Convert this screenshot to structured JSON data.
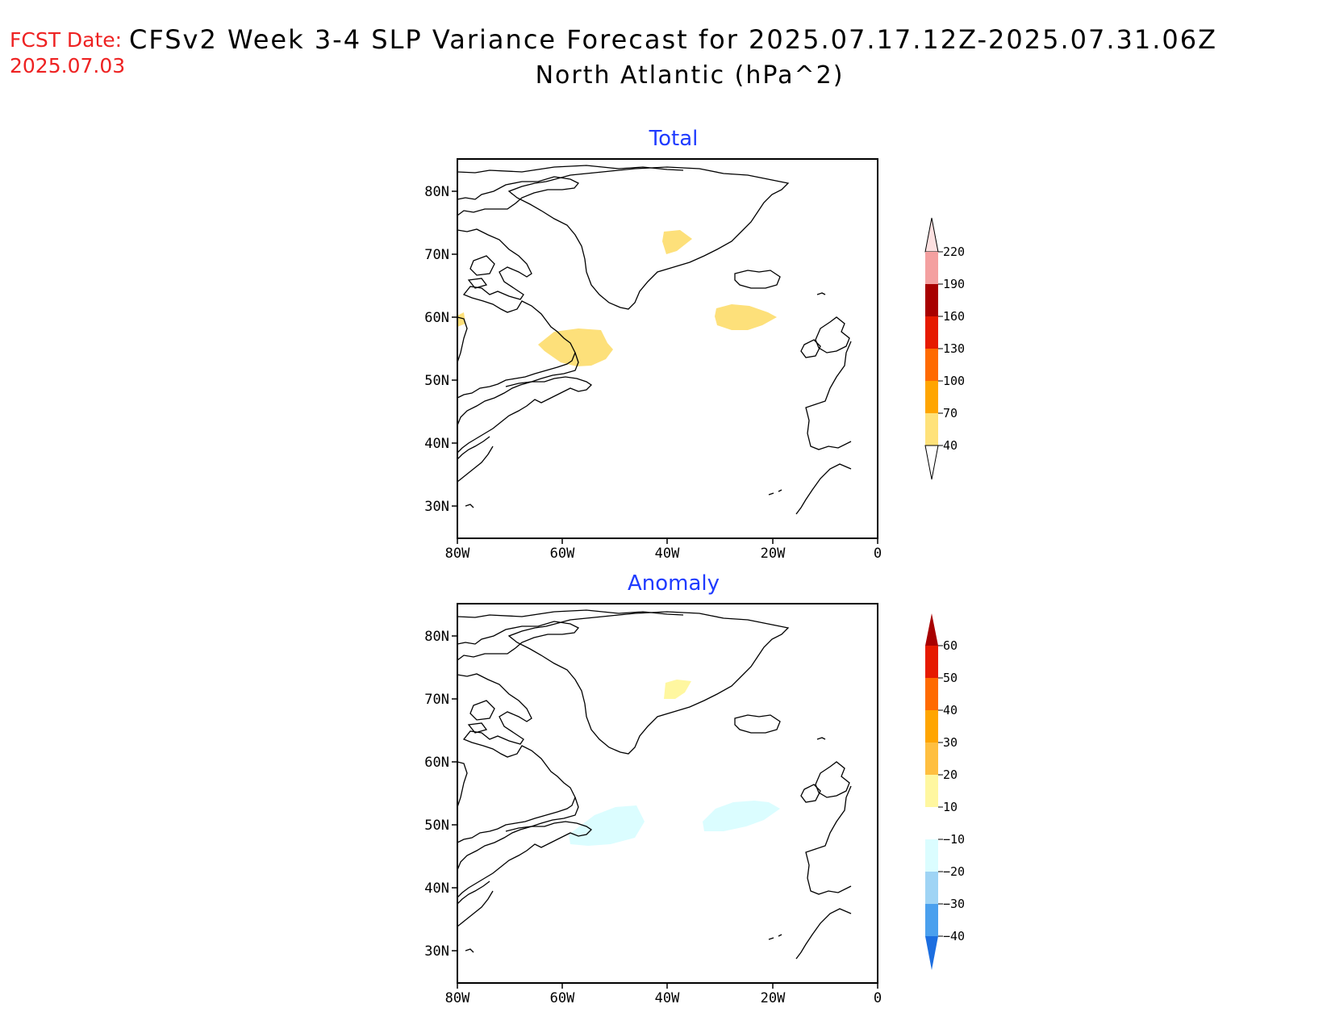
{
  "header": {
    "fcst_label": "FCST Date:",
    "fcst_date": "2025.07.03",
    "title": "CFSv2 Week 3-4 SLP Variance Forecast for 2025.07.17.12Z-2025.07.31.06Z",
    "subtitle": "North Atlantic (hPa^2)"
  },
  "map_extent": {
    "lon_range": [
      -80,
      0
    ],
    "lat_range": [
      25,
      85
    ]
  },
  "colors": {
    "title_red": "#ee2222",
    "panel_title_blue": "#1f3bff"
  },
  "panels": [
    {
      "title": "Total",
      "lat_ticks": [
        "80N",
        "70N",
        "60N",
        "50N",
        "40N",
        "30N"
      ],
      "lon_ticks": [
        "80W",
        "60W",
        "40W",
        "20W",
        "0"
      ],
      "colorbar": {
        "labels": [
          "40",
          "70",
          "100",
          "130",
          "160",
          "190",
          "220"
        ],
        "bins": [
          {
            "range": "40-70",
            "color": "#ffe27a"
          },
          {
            "range": "70-100",
            "color": "#ffa500"
          },
          {
            "range": "100-130",
            "color": "#ff6a00"
          },
          {
            "range": "130-160",
            "color": "#e61a00"
          },
          {
            "range": "160-190",
            "color": "#a80000"
          },
          {
            "range": "190-220",
            "color": "#f4a0a0"
          },
          {
            "range": ">220",
            "color": "#fde0e0"
          }
        ]
      },
      "shaded_regions": [
        {
          "level": "40-70",
          "color": "#fde07a",
          "label": "central Greenland"
        },
        {
          "level": "40-70",
          "color": "#fde07a",
          "label": "south of Iceland"
        },
        {
          "level": "40-70",
          "color": "#fde07a",
          "label": "Labrador Sea / Newfoundland"
        },
        {
          "level": "40-70",
          "color": "#fde07a",
          "label": "Hudson Bay edge"
        }
      ]
    },
    {
      "title": "Anomaly",
      "lat_ticks": [
        "80N",
        "70N",
        "60N",
        "50N",
        "40N",
        "30N"
      ],
      "lon_ticks": [
        "80W",
        "60W",
        "40W",
        "20W",
        "0"
      ],
      "colorbar": {
        "labels": [
          "60",
          "50",
          "40",
          "30",
          "20",
          "10",
          "−10",
          "−20",
          "−30",
          "−40"
        ],
        "bins": [
          {
            "range": ">60",
            "color": "#a80000"
          },
          {
            "range": "50-60",
            "color": "#e61a00"
          },
          {
            "range": "40-50",
            "color": "#ff6a00"
          },
          {
            "range": "30-40",
            "color": "#ffa500"
          },
          {
            "range": "20-30",
            "color": "#ffbf40"
          },
          {
            "range": "10-20",
            "color": "#fff7a0"
          },
          {
            "range": "-10-10",
            "color": "#ffffff"
          },
          {
            "range": "-20--10",
            "color": "#dbfdff"
          },
          {
            "range": "-30--20",
            "color": "#9fd4f5"
          },
          {
            "range": "-40--30",
            "color": "#4aa0ee"
          },
          {
            "range": "<-40",
            "color": "#1c6ee0"
          }
        ]
      },
      "shaded_regions": [
        {
          "level": "10-20",
          "color": "#fff7a0",
          "label": "central Greenland"
        },
        {
          "level": "-20--10",
          "color": "#dbfdff",
          "label": "south of Newfoundland"
        },
        {
          "level": "-20--10",
          "color": "#dbfdff",
          "label": "mid-Atlantic south of Iceland"
        }
      ]
    }
  ]
}
